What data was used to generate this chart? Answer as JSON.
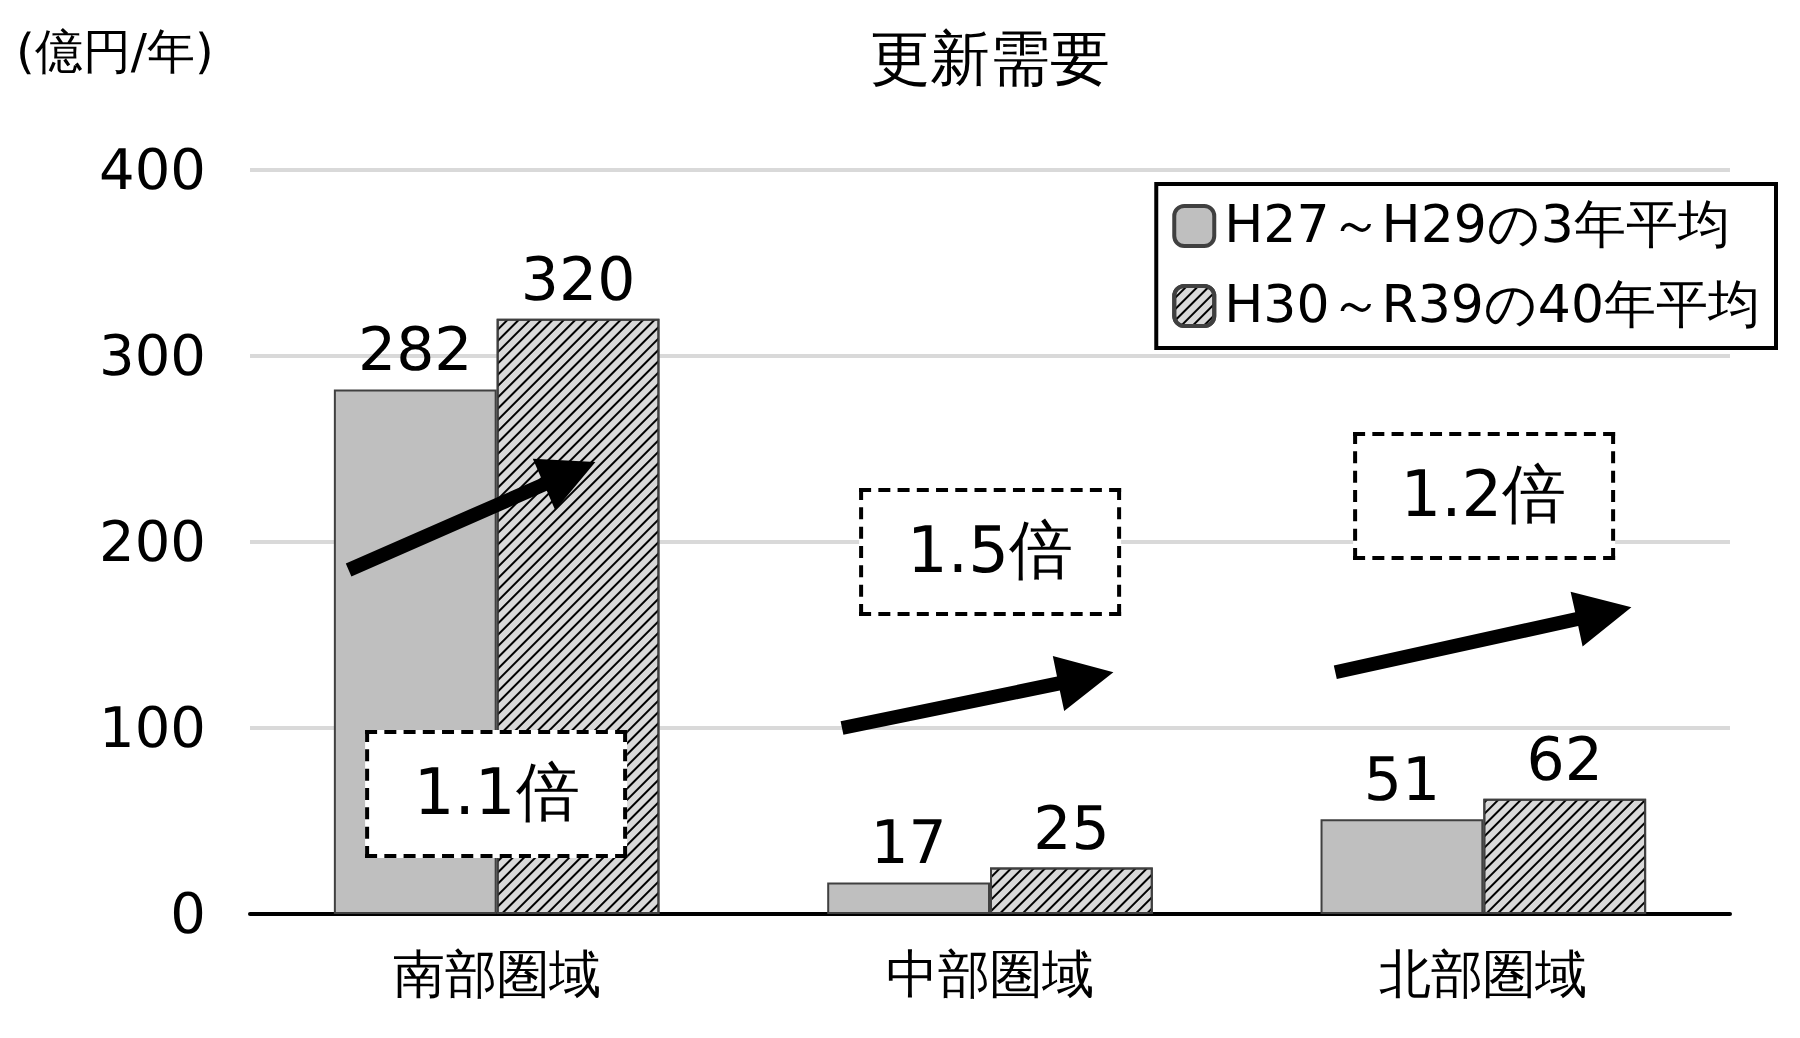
{
  "chart_data": {
    "type": "bar",
    "title": "更新需要",
    "ylabel": "(億円/年)",
    "categories": [
      "南部圏域",
      "中部圏域",
      "北部圏域"
    ],
    "series": [
      {
        "name": "H27～H29の3年平均",
        "color": "#bfbfbf",
        "values": [
          282,
          17,
          51
        ]
      },
      {
        "name": "H30～R39の40年平均",
        "color": "#d9d9d9",
        "values": [
          320,
          25,
          62
        ]
      }
    ],
    "ylim": [
      0,
      400
    ],
    "yticks": [
      0,
      100,
      200,
      300,
      400
    ],
    "grid": "y",
    "legend": "top right",
    "data_labels": true,
    "annotations": [
      "1.1倍",
      "1.5倍",
      "1.2倍"
    ]
  }
}
